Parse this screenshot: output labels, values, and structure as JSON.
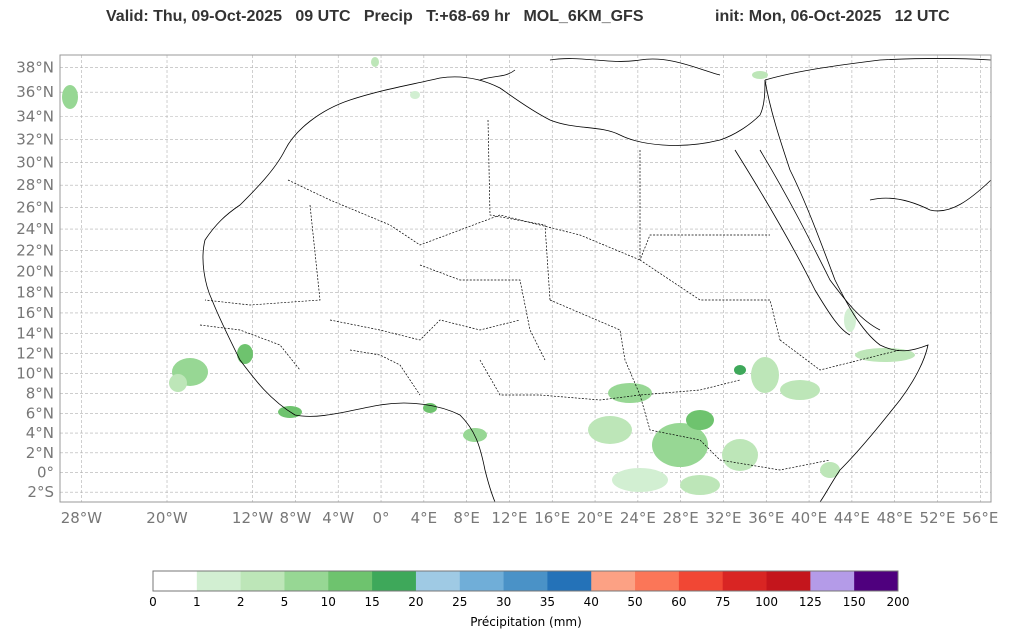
{
  "header": {
    "valid": "Valid: Thu, 09-Oct-2025   09 UTC   Precip   T:+68-69 hr   MOL_6KM_GFS",
    "init": "init: Mon, 06-Oct-2025   12 UTC"
  },
  "map": {
    "lat_labels": [
      "38°N",
      "36°N",
      "34°N",
      "32°N",
      "30°N",
      "28°N",
      "26°N",
      "24°N",
      "22°N",
      "20°N",
      "18°N",
      "16°N",
      "14°N",
      "12°N",
      "10°N",
      "8°N",
      "6°N",
      "4°N",
      "2°N",
      "0°",
      "2°S"
    ],
    "lat_values": [
      38,
      36,
      34,
      32,
      30,
      28,
      26,
      24,
      22,
      20,
      18,
      16,
      14,
      12,
      10,
      8,
      6,
      4,
      2,
      0,
      -2
    ],
    "lon_labels": [
      "28°W",
      "20°W",
      "12°W",
      "8°W",
      "4°W",
      "0°",
      "4°E",
      "8°E",
      "12°E",
      "16°E",
      "20°E",
      "24°E",
      "28°E",
      "32°E",
      "36°E",
      "40°E",
      "44°E",
      "48°E",
      "52°E",
      "56°E"
    ],
    "lon_values": [
      -28,
      -20,
      -12,
      -8,
      -4,
      0,
      4,
      8,
      12,
      16,
      20,
      24,
      28,
      32,
      36,
      40,
      44,
      48,
      52,
      56
    ],
    "colors": {
      "land_line": "#000000",
      "grid": "#b0b0b0",
      "frame": "#999999"
    }
  },
  "colorbar": {
    "ticks": [
      "0",
      "1",
      "2",
      "5",
      "10",
      "15",
      "20",
      "25",
      "30",
      "35",
      "40",
      "50",
      "60",
      "75",
      "100",
      "125",
      "150",
      "200"
    ],
    "colors": [
      "#ffffff",
      "#d2efd2",
      "#bde6b8",
      "#97d794",
      "#6ec36e",
      "#3ea85a",
      "#9fcae4",
      "#70aed8",
      "#4a92c7",
      "#2472b8",
      "#fca184",
      "#fb7658",
      "#f14734",
      "#d92523",
      "#c4151c",
      "#b49be8",
      "#4f007e"
    ],
    "label": "Précipitation (mm)"
  }
}
